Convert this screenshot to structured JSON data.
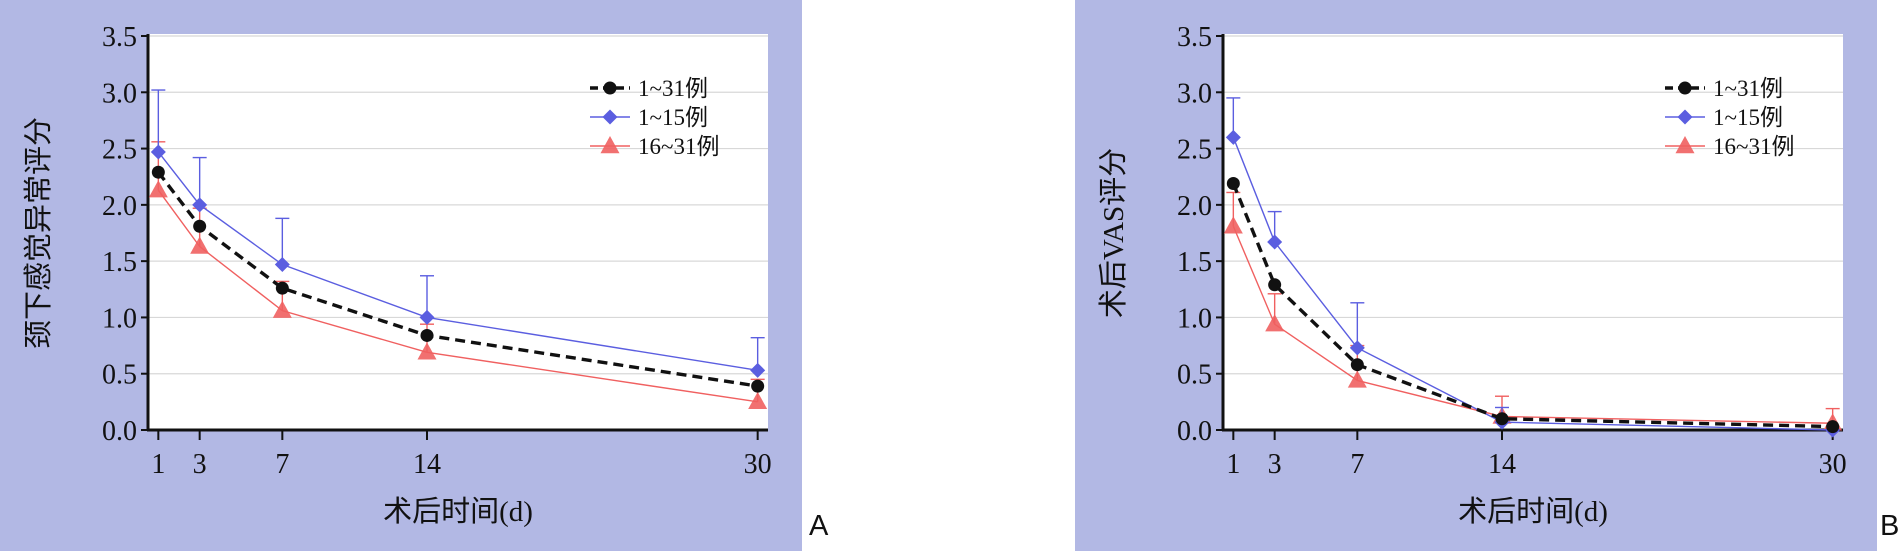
{
  "figure_letters": [
    "A",
    "B"
  ],
  "chart_data": [
    {
      "type": "line",
      "panel": "A",
      "xlabel": "术后时间(d)",
      "ylabel": "颈下感觉异常评分",
      "x": [
        1,
        3,
        7,
        14,
        30
      ],
      "xticks": [
        "1",
        "3",
        "7",
        "14",
        "30"
      ],
      "xlim": [
        0.5,
        30.5
      ],
      "ylim": [
        0,
        3.5
      ],
      "yticks": [
        "0.0",
        "0.5",
        "1.0",
        "1.5",
        "2.0",
        "2.5",
        "3.0",
        "3.5"
      ],
      "grid": true,
      "legend_position": "top-right",
      "series": [
        {
          "name": "1~31例",
          "color": "#111111",
          "marker": "circle",
          "dashed": true,
          "values": [
            2.29,
            1.81,
            1.26,
            0.84,
            0.39
          ],
          "errors": []
        },
        {
          "name": "1~15例",
          "color": "#5b5ee0",
          "marker": "diamond",
          "dashed": false,
          "values": [
            2.47,
            2.0,
            1.47,
            1.0,
            0.53
          ],
          "errors": [
            0.55,
            0.42,
            0.41,
            0.37,
            0.29
          ]
        },
        {
          "name": "16~31例",
          "color": "#f06060",
          "marker": "triangle",
          "dashed": false,
          "values": [
            2.13,
            1.63,
            1.06,
            0.69,
            0.25
          ],
          "errors": [
            0.43,
            0.34,
            0.26,
            0.25,
            0.2
          ]
        }
      ]
    },
    {
      "type": "line",
      "panel": "B",
      "xlabel": "术后时间(d)",
      "ylabel": "术后VAS评分",
      "x": [
        1,
        3,
        7,
        14,
        30
      ],
      "xticks": [
        "1",
        "3",
        "7",
        "14",
        "30"
      ],
      "xlim": [
        0.5,
        30.5
      ],
      "ylim": [
        0,
        3.5
      ],
      "yticks": [
        "0.0",
        "0.5",
        "1.0",
        "1.5",
        "2.0",
        "2.5",
        "3.0",
        "3.5"
      ],
      "grid": true,
      "legend_position": "top-right",
      "series": [
        {
          "name": "1~31例",
          "color": "#111111",
          "marker": "circle",
          "dashed": true,
          "values": [
            2.19,
            1.29,
            0.58,
            0.1,
            0.03
          ],
          "errors": []
        },
        {
          "name": "1~15例",
          "color": "#5b5ee0",
          "marker": "diamond",
          "dashed": false,
          "values": [
            2.6,
            1.67,
            0.73,
            0.07,
            0.0
          ],
          "errors": [
            0.35,
            0.27,
            0.4,
            0.13,
            0.0
          ]
        },
        {
          "name": "16~31例",
          "color": "#f06060",
          "marker": "triangle",
          "dashed": false,
          "values": [
            1.81,
            0.94,
            0.44,
            0.12,
            0.06
          ],
          "errors": [
            0.3,
            0.27,
            0.31,
            0.18,
            0.13
          ]
        }
      ]
    }
  ]
}
